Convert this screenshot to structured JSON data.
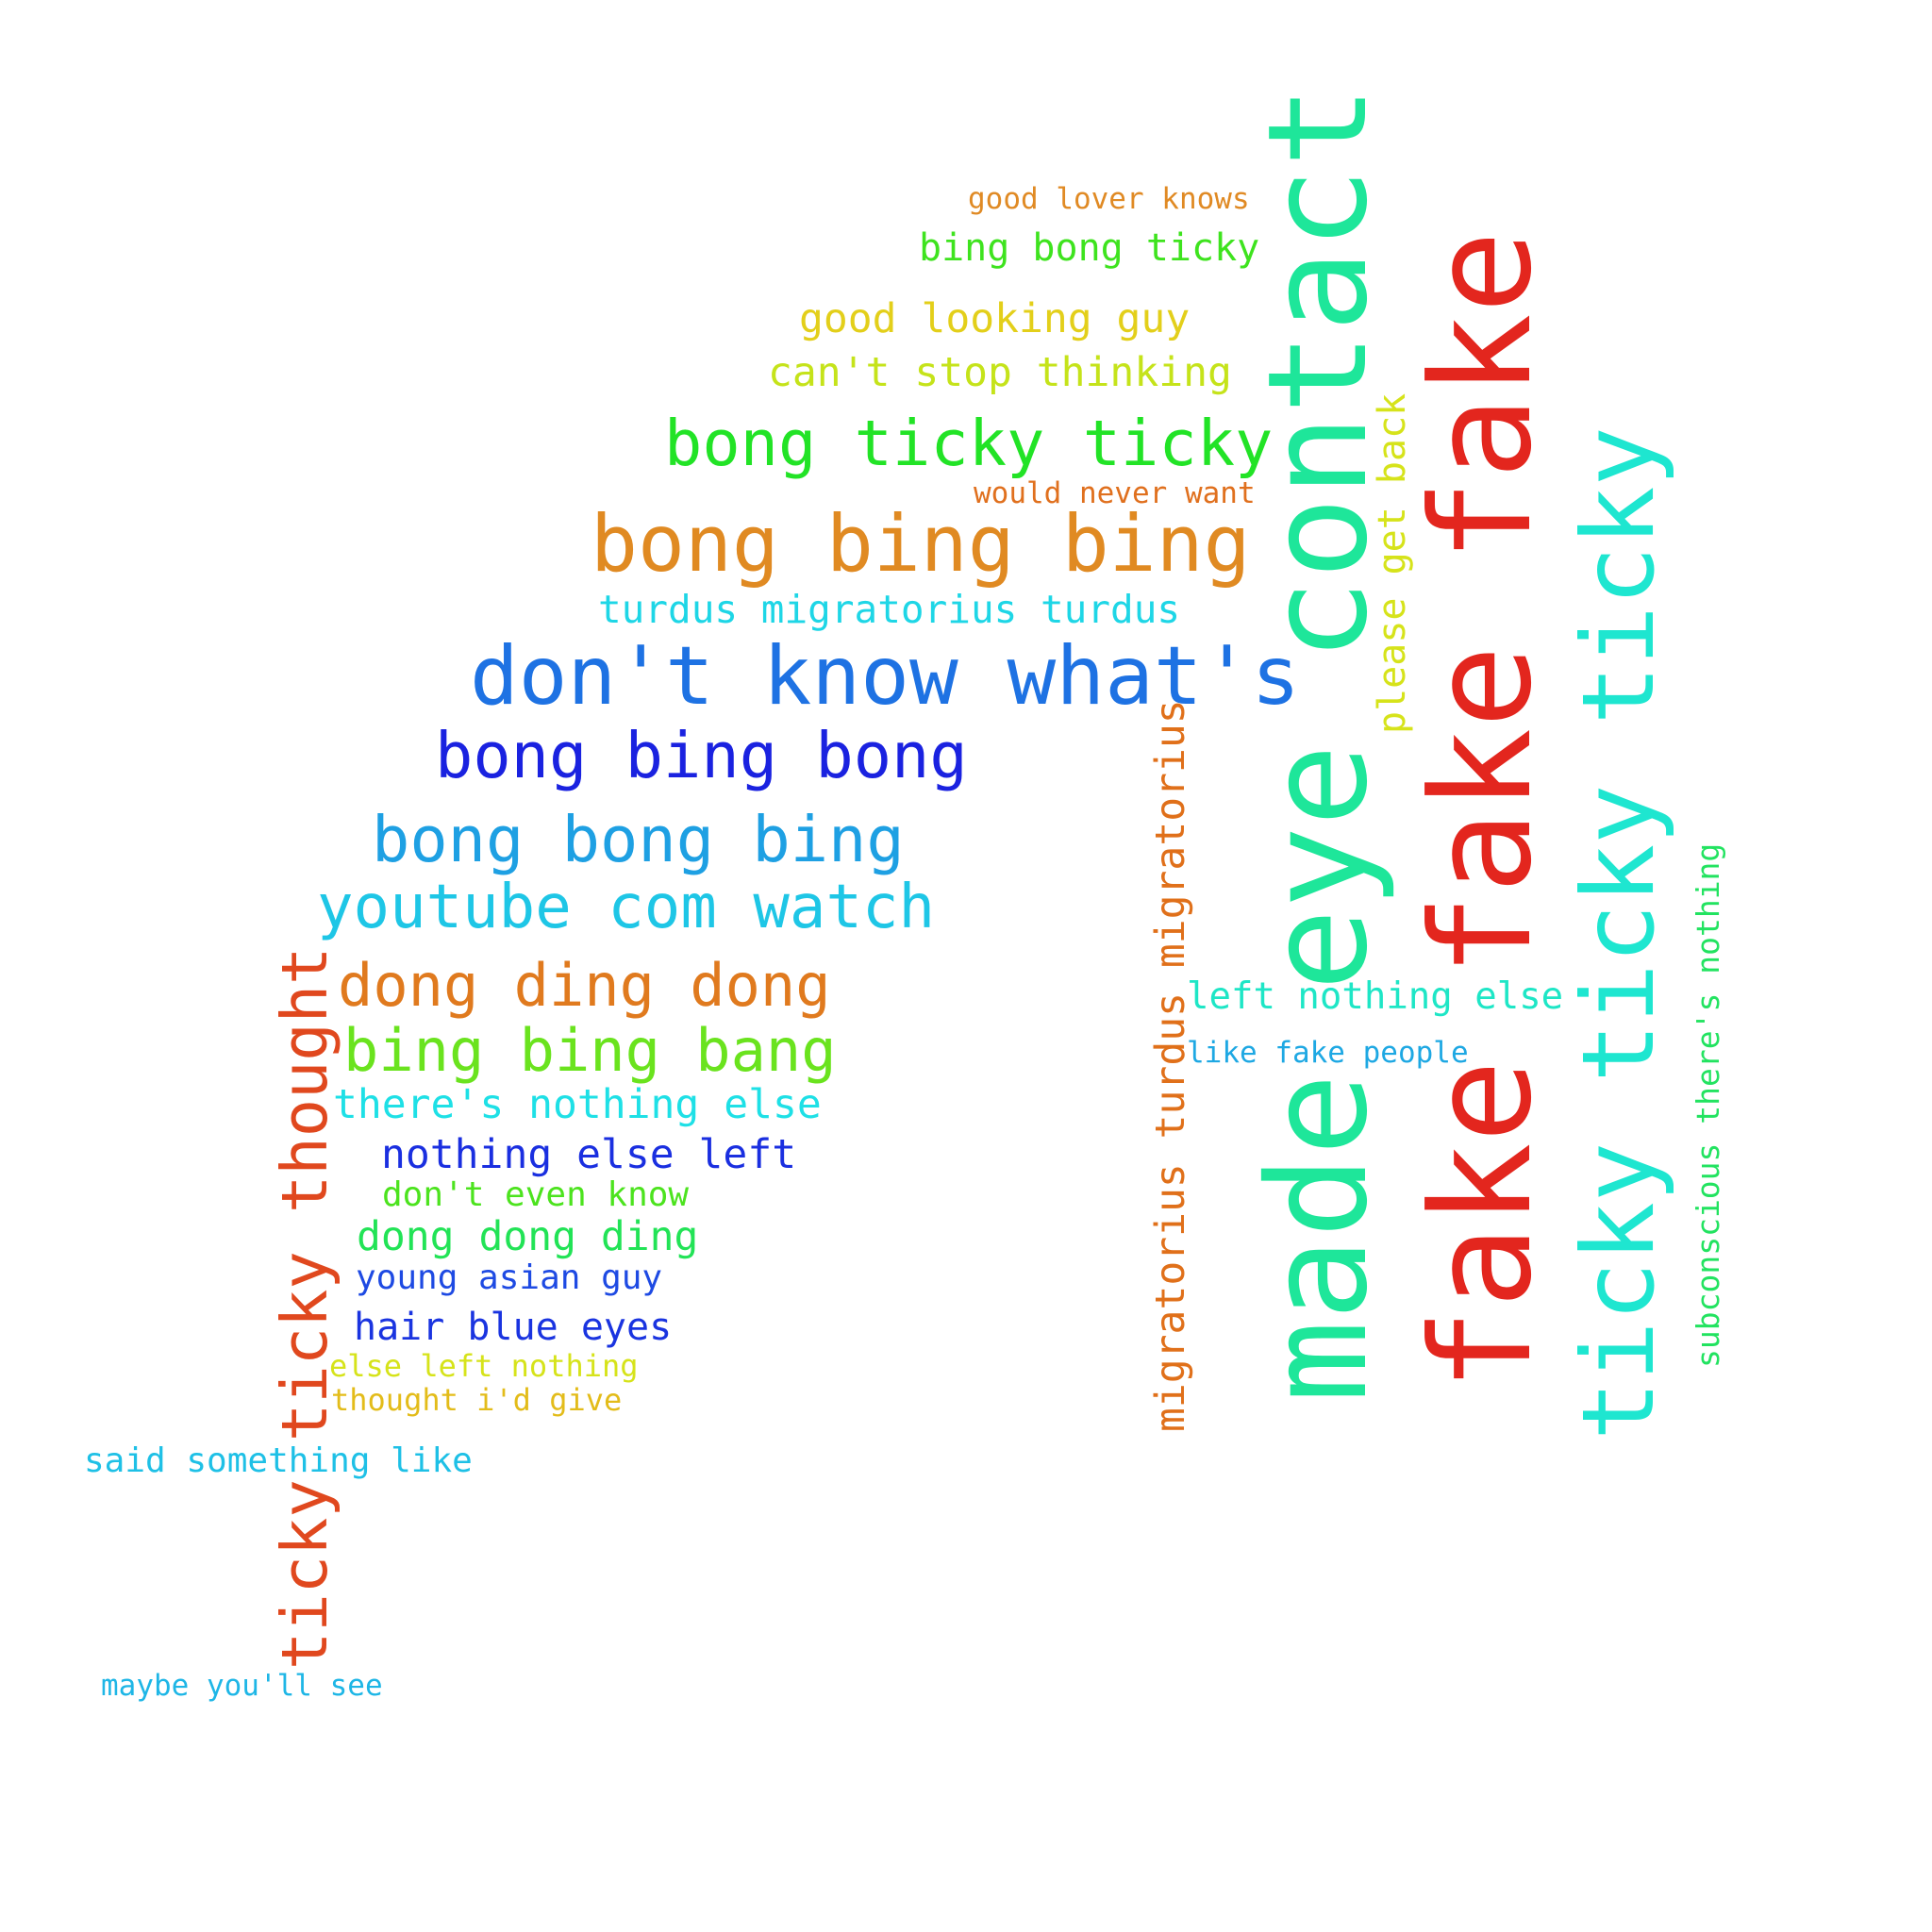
{
  "words": [
    {
      "text": "good lover knows",
      "color": "#e08a24"
    },
    {
      "text": "bing bong ticky",
      "color": "#3ee31e"
    },
    {
      "text": "good looking guy",
      "color": "#e3cf1a"
    },
    {
      "text": "can't stop thinking",
      "color": "#c5e31a"
    },
    {
      "text": "bong ticky ticky",
      "color": "#22e326"
    },
    {
      "text": "would never want",
      "color": "#e0701e"
    },
    {
      "text": "bong bing bing",
      "color": "#e08a22"
    },
    {
      "text": "turdus migratorius turdus",
      "color": "#1ed6e6"
    },
    {
      "text": "don't know what's",
      "color": "#1e72e3"
    },
    {
      "text": "bong bing bong",
      "color": "#1a22e0"
    },
    {
      "text": "bong bong bing",
      "color": "#1ea0e3"
    },
    {
      "text": "youtube com watch",
      "color": "#1ec6e6"
    },
    {
      "text": "dong ding dong",
      "color": "#e07a1e"
    },
    {
      "text": "bing bing bang",
      "color": "#6ae31e"
    },
    {
      "text": "there's nothing else",
      "color": "#1ee0e6"
    },
    {
      "text": "nothing else left",
      "color": "#1a2fe0"
    },
    {
      "text": "don't even know",
      "color": "#4ce31e"
    },
    {
      "text": "dong dong ding",
      "color": "#22e356"
    },
    {
      "text": "young asian guy",
      "color": "#1e4ae3"
    },
    {
      "text": "hair blue eyes",
      "color": "#1a34e0"
    },
    {
      "text": "else left nothing",
      "color": "#d6e31a"
    },
    {
      "text": "thought i'd give",
      "color": "#e3bc1a"
    },
    {
      "text": "said something like",
      "color": "#1ec0e6"
    },
    {
      "text": "maybe you'll see",
      "color": "#1eb6e6"
    },
    {
      "text": "left nothing else",
      "color": "#1ee6c6"
    },
    {
      "text": "like fake people",
      "color": "#1ea8e3"
    },
    {
      "text": "ticky ticky thought",
      "color": "#e0481e"
    },
    {
      "text": "migratorius turdus migratorius",
      "color": "#e0701a"
    },
    {
      "text": "made eye contact",
      "color": "#1ee69a"
    },
    {
      "text": "please get back",
      "color": "#d6e31a"
    },
    {
      "text": "fake fake fake",
      "color": "#e3261e"
    },
    {
      "text": "ticky ticky ticky",
      "color": "#1ee6d0"
    },
    {
      "text": "subconscious there's nothing",
      "color": "#22e360"
    }
  ]
}
